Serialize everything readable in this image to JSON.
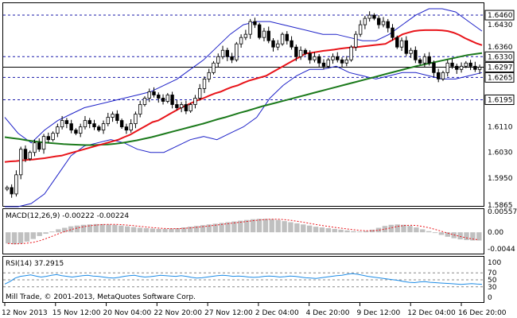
{
  "chart_data": {
    "type": "candlestick",
    "main": {
      "ylim": [
        1.5865,
        1.6495
      ],
      "y_ticks": [
        "1.6430",
        "1.6360",
        "1.6110",
        "1.6030",
        "1.5950",
        "1.5865"
      ],
      "levels": [
        {
          "label": "1.6460",
          "value": 1.646,
          "style": "dotted"
        },
        {
          "label": "1.6330",
          "value": 1.633,
          "style": "dotted"
        },
        {
          "label": "1.6297",
          "value": 1.6297,
          "style": "solid"
        },
        {
          "label": "1.6265",
          "value": 1.6265,
          "style": "dotted"
        },
        {
          "label": "1.6195",
          "value": 1.6195,
          "style": "dotted"
        }
      ],
      "close": [
        1.592,
        1.59,
        1.596,
        1.604,
        1.601,
        1.603,
        1.606,
        1.604,
        1.608,
        1.607,
        1.609,
        1.611,
        1.613,
        1.612,
        1.61,
        1.609,
        1.611,
        1.613,
        1.612,
        1.611,
        1.61,
        1.612,
        1.614,
        1.615,
        1.613,
        1.611,
        1.61,
        1.612,
        1.615,
        1.618,
        1.62,
        1.622,
        1.621,
        1.62,
        1.619,
        1.621,
        1.618,
        1.617,
        1.618,
        1.616,
        1.618,
        1.62,
        1.623,
        1.626,
        1.628,
        1.631,
        1.633,
        1.635,
        1.633,
        1.632,
        1.637,
        1.639,
        1.64,
        1.644,
        1.643,
        1.639,
        1.641,
        1.638,
        1.636,
        1.637,
        1.64,
        1.638,
        1.636,
        1.633,
        1.635,
        1.634,
        1.632,
        1.633,
        1.631,
        1.63,
        1.632,
        1.633,
        1.632,
        1.631,
        1.632,
        1.636,
        1.64,
        1.643,
        1.645,
        1.646,
        1.645,
        1.643,
        1.644,
        1.642,
        1.639,
        1.636,
        1.638,
        1.634,
        1.635,
        1.632,
        1.631,
        1.633,
        1.631,
        1.628,
        1.626,
        1.628,
        1.631,
        1.63,
        1.629,
        1.63,
        1.631,
        1.63,
        1.629,
        1.6297
      ],
      "sma_red": [
        1.6,
        1.6002,
        1.6003,
        1.6005,
        1.6007,
        1.6008,
        1.601,
        1.6012,
        1.6015,
        1.6018,
        1.602,
        1.6025,
        1.603,
        1.6035,
        1.604,
        1.6045,
        1.605,
        1.6055,
        1.606,
        1.6065,
        1.607,
        1.6078,
        1.6085,
        1.6095,
        1.6105,
        1.6115,
        1.6125,
        1.613,
        1.614,
        1.615,
        1.616,
        1.617,
        1.6178,
        1.6186,
        1.6194,
        1.62,
        1.6208,
        1.6215,
        1.622,
        1.6228,
        1.6235,
        1.624,
        1.6248,
        1.6255,
        1.626,
        1.6265,
        1.627,
        1.628,
        1.629,
        1.63,
        1.631,
        1.632,
        1.633,
        1.634,
        1.6342,
        1.6345,
        1.6348,
        1.635,
        1.6352,
        1.6355,
        1.6357,
        1.6359,
        1.636,
        1.6362,
        1.6364,
        1.6366,
        1.6368,
        1.637,
        1.638,
        1.639,
        1.64,
        1.6405,
        1.641,
        1.6412,
        1.6413,
        1.6413,
        1.6413,
        1.6412,
        1.641,
        1.6405,
        1.6398,
        1.6388,
        1.638,
        1.6372,
        1.6366
      ],
      "sma_green": [
        1.6078,
        1.6075,
        1.6072,
        1.6068,
        1.6065,
        1.6062,
        1.606,
        1.6058,
        1.6056,
        1.6055,
        1.6054,
        1.6053,
        1.6053,
        1.6054,
        1.6055,
        1.6057,
        1.606,
        1.6064,
        1.6068,
        1.6073,
        1.6078,
        1.6084,
        1.609,
        1.6096,
        1.6102,
        1.6108,
        1.6114,
        1.612,
        1.6127,
        1.6134,
        1.614,
        1.6147,
        1.6154,
        1.616,
        1.6167,
        1.6174,
        1.618,
        1.6186,
        1.6192,
        1.6198,
        1.6204,
        1.621,
        1.6216,
        1.6222,
        1.6228,
        1.6234,
        1.624,
        1.6246,
        1.6252,
        1.6258,
        1.6264,
        1.627,
        1.6276,
        1.6282,
        1.6288,
        1.6294,
        1.63,
        1.6305,
        1.631,
        1.6315,
        1.632,
        1.6325,
        1.633,
        1.6335,
        1.6338,
        1.6341
      ],
      "bb_upper": [
        1.614,
        1.609,
        1.606,
        1.61,
        1.613,
        1.615,
        1.617,
        1.618,
        1.619,
        1.62,
        1.621,
        1.622,
        1.624,
        1.626,
        1.629,
        1.632,
        1.636,
        1.64,
        1.643,
        1.644,
        1.644,
        1.643,
        1.642,
        1.641,
        1.64,
        1.64,
        1.639,
        1.638,
        1.638,
        1.64,
        1.643,
        1.646,
        1.648,
        1.648,
        1.647,
        1.644,
        1.641
      ],
      "bb_lower": [
        1.586,
        1.586,
        1.587,
        1.59,
        1.596,
        1.602,
        1.605,
        1.606,
        1.607,
        1.606,
        1.604,
        1.603,
        1.603,
        1.605,
        1.607,
        1.608,
        1.607,
        1.609,
        1.611,
        1.614,
        1.62,
        1.624,
        1.627,
        1.629,
        1.629,
        1.63,
        1.628,
        1.627,
        1.626,
        1.627,
        1.628,
        1.628,
        1.627,
        1.626,
        1.626,
        1.627,
        1.628
      ]
    },
    "macd": {
      "label": "MACD(12,26,9)",
      "value1": "-0.00222",
      "value2": "-0.00224",
      "ylim": [
        -0.0055,
        0.006
      ],
      "y_ticks": [
        "0.00557",
        "0.00",
        "-0.0044"
      ],
      "hist": [
        -0.003,
        -0.0032,
        -0.003,
        -0.0025,
        -0.0018,
        -0.001,
        -0.0004,
        0.0002,
        0.0008,
        0.0012,
        0.0016,
        0.0018,
        0.002,
        0.0021,
        0.0022,
        0.0022,
        0.0021,
        0.002,
        0.0018,
        0.0016,
        0.0014,
        0.0012,
        0.0011,
        0.001,
        0.0009,
        0.0009,
        0.001,
        0.0011,
        0.0013,
        0.0015,
        0.0017,
        0.0019,
        0.0021,
        0.0023,
        0.0025,
        0.0027,
        0.0029,
        0.0031,
        0.0033,
        0.0035,
        0.0036,
        0.0036,
        0.0035,
        0.0033,
        0.003,
        0.0027,
        0.0024,
        0.0021,
        0.0018,
        0.0015,
        0.0013,
        0.0011,
        0.0009,
        0.0007,
        0.0005,
        0.0003,
        0.0002,
        0.0003,
        0.0007,
        0.0012,
        0.0017,
        0.002,
        0.0021,
        0.002,
        0.0017,
        0.0013,
        0.0008,
        0.0003,
        -0.0002,
        -0.0007,
        -0.0012,
        -0.0016,
        -0.0019,
        -0.0021,
        -0.0022,
        -0.0022
      ]
    },
    "rsi": {
      "label": "RSI(14)",
      "value": "37.2915",
      "ylim": [
        0,
        100
      ],
      "y_ticks": [
        "100",
        "70",
        "50",
        "30",
        "0"
      ],
      "values": [
        38,
        45,
        55,
        60,
        62,
        64,
        61,
        58,
        60,
        63,
        65,
        62,
        60,
        58,
        60,
        62,
        63,
        61,
        60,
        58,
        56,
        55,
        57,
        60,
        62,
        63,
        60,
        58,
        59,
        61,
        63,
        62,
        61,
        60,
        62,
        60,
        57,
        55,
        56,
        58,
        60,
        62,
        63,
        62,
        60,
        61,
        60,
        58,
        57,
        58,
        60,
        61,
        60,
        58,
        59,
        61,
        60,
        58,
        56,
        55,
        54,
        56,
        58,
        60,
        62,
        63,
        66,
        68,
        66,
        63,
        60,
        58,
        56,
        54,
        52,
        50,
        48,
        45,
        43,
        42,
        44,
        45,
        43,
        42,
        41,
        40,
        39,
        38,
        37,
        38,
        39,
        38,
        37.3
      ]
    },
    "x_ticks": [
      "12 Nov 2013",
      "15 Nov 12:00",
      "20 Nov 04:00",
      "22 Nov 20:00",
      "27 Nov 12:00",
      "2 Dec 04:00",
      "4 Dec 20:00",
      "9 Dec 12:00",
      "12 Dec 04:00",
      "16 Dec 20:00"
    ],
    "footer": "Mill Trade, © 2001-2013, MetaQuotes Software Corp."
  },
  "colors": {
    "candle": "#000000",
    "sma_red": "#e8141a",
    "sma_green": "#1c7a1c",
    "bands": "#1e22c8",
    "macd_hist": "#c0c0c0",
    "macd_signal": "#e8141a",
    "rsi": "#1e8ce6",
    "grid": "#1a1aaa"
  }
}
